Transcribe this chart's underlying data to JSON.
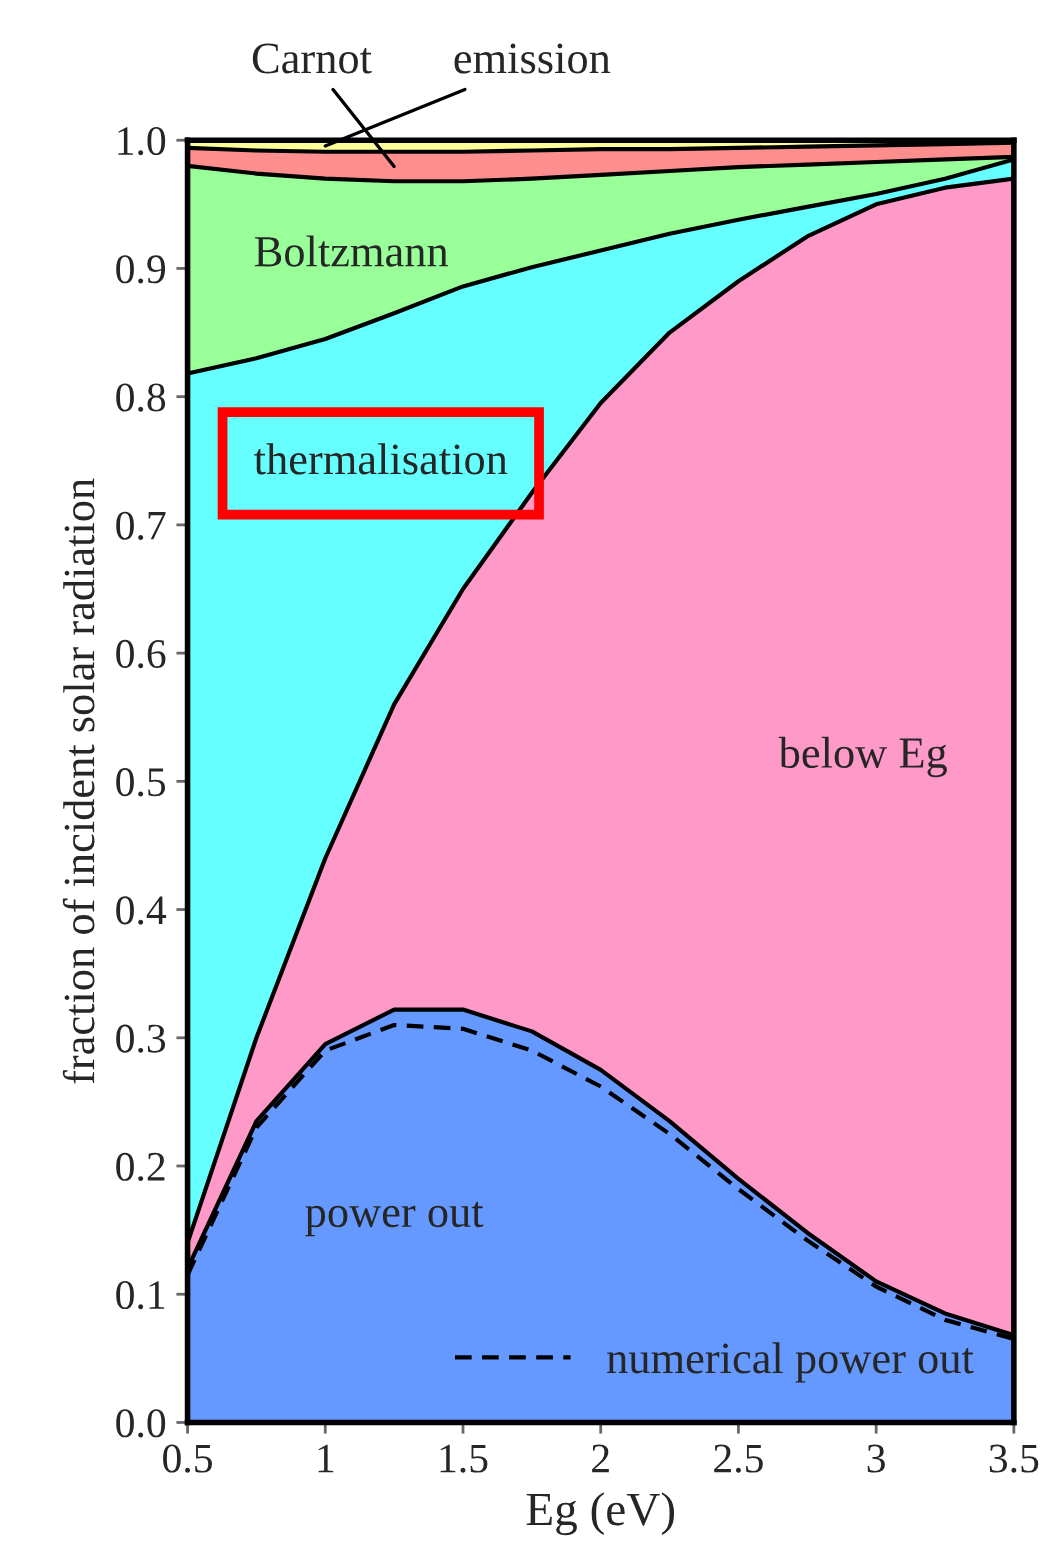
{
  "chart_data": {
    "type": "area",
    "stacked": true,
    "xlabel": "Eg (eV)",
    "ylabel": "fraction of incident solar radiation",
    "x": [
      0.5,
      0.75,
      1.0,
      1.25,
      1.5,
      1.75,
      2.0,
      2.25,
      2.5,
      2.75,
      3.0,
      3.25,
      3.5
    ],
    "series": [
      {
        "name": "power out",
        "color": "#6699ff",
        "values": [
          0.12,
          0.235,
          0.295,
          0.322,
          0.322,
          0.305,
          0.275,
          0.235,
          0.19,
          0.148,
          0.11,
          0.085,
          0.068
        ]
      },
      {
        "name": "below Eg",
        "color": "#ff99c8",
        "values": [
          0.02,
          0.065,
          0.145,
          0.238,
          0.328,
          0.42,
          0.52,
          0.615,
          0.7,
          0.777,
          0.84,
          0.878,
          0.902
        ]
      },
      {
        "name": "thermalisation",
        "color": "#66ffff",
        "values": [
          0.678,
          0.53,
          0.405,
          0.305,
          0.236,
          0.176,
          0.119,
          0.077,
          0.048,
          0.023,
          0.008,
          0.007,
          0.015
        ]
      },
      {
        "name": "Boltzmann",
        "color": "#99ff99",
        "values": [
          0.162,
          0.144,
          0.125,
          0.103,
          0.082,
          0.069,
          0.059,
          0.049,
          0.041,
          0.033,
          0.025,
          0.015,
          0.002
        ]
      },
      {
        "name": "Carnot",
        "color": "#ff8f8f",
        "values": [
          0.014,
          0.018,
          0.021,
          0.023,
          0.023,
          0.022,
          0.02,
          0.017,
          0.015,
          0.014,
          0.013,
          0.012,
          0.011
        ]
      },
      {
        "name": "emission",
        "color": "#ffff99",
        "values": [
          0.006,
          0.008,
          0.009,
          0.009,
          0.009,
          0.008,
          0.007,
          0.007,
          0.006,
          0.005,
          0.004,
          0.003,
          0.002
        ]
      },
      {
        "type": "line",
        "name": "numerical power out",
        "color": "#000000",
        "line_style": "dashed",
        "values": [
          0.115,
          0.23,
          0.29,
          0.31,
          0.307,
          0.29,
          0.262,
          0.225,
          0.182,
          0.142,
          0.106,
          0.08,
          0.065
        ]
      }
    ],
    "xlim": [
      0.5,
      3.5
    ],
    "xticks": [
      0.5,
      1,
      1.5,
      2,
      2.5,
      3,
      3.5
    ],
    "ylim": [
      0,
      1
    ],
    "yticks": [
      {
        "value": 0,
        "label": "0.0"
      },
      0.1,
      0.2,
      0.3,
      0.4,
      0.5,
      0.6,
      0.7,
      0.8,
      0.9,
      {
        "value": 1,
        "label": "1.0"
      }
    ],
    "legend": "bottom right"
  }
}
